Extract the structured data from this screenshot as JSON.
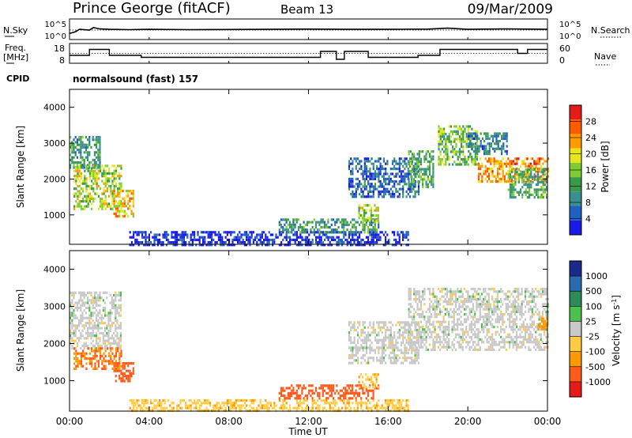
{
  "header": {
    "station": "Prince George (fitACF)",
    "beam": "Beam 13",
    "date": "09/Mar/2009"
  },
  "panels": {
    "nsky_label": "N.Sky",
    "nsearch_label": "N.Search",
    "freq_label_line1": "Freq.",
    "freq_label_line2": "[MHz]",
    "nave_label": "Nave",
    "cpid_label": "CPID",
    "cpid_value": "normalsound (fast) 157",
    "noise_ticks": [
      "10^5",
      "10^0"
    ],
    "freq_ticks": [
      "18",
      "8"
    ],
    "nave_ticks": [
      "60",
      "0"
    ]
  },
  "colors": {
    "power_scale": [
      "#1a1ae6",
      "#2060c0",
      "#3a8f8f",
      "#3a9a4a",
      "#7fcc33",
      "#e6e61a",
      "#ff9a00",
      "#ff5a00",
      "#e61a1a"
    ],
    "velocity_scale": [
      "#1a2a8a",
      "#2c6ab0",
      "#2e8a5a",
      "#4cc04c",
      "#c8c8c8",
      "#ffcc44",
      "#ff9900",
      "#ff5a1a",
      "#e61a1a"
    ]
  },
  "chart_data": [
    {
      "type": "line",
      "title": "Prince George (fitACF)",
      "subtitle": "Beam 13",
      "xlabel": "",
      "ylabel": "N.Sky",
      "note": "noise sky (solid) and noise search (dotted)",
      "x_range_hours": [
        0,
        24
      ],
      "ylim": [
        1,
        100000
      ],
      "y_scale": "log",
      "ticks_y": [
        "10^5",
        "10^0"
      ],
      "series": [
        {
          "name": "N.Sky",
          "x": [
            0,
            0.3,
            0.5,
            1.0,
            1.2,
            1.5,
            2,
            3,
            4,
            6,
            8,
            10,
            12,
            14,
            16,
            18,
            19,
            20,
            22,
            23,
            24
          ],
          "y": [
            30,
            80,
            300,
            200,
            800,
            400,
            300,
            250,
            300,
            250,
            280,
            300,
            350,
            300,
            300,
            350,
            600,
            300,
            400,
            350,
            300
          ]
        },
        {
          "name": "N.Search",
          "x": [
            0,
            6,
            12,
            18,
            24
          ],
          "y": [
            200,
            200,
            200,
            200,
            200
          ]
        }
      ]
    },
    {
      "type": "line",
      "ylabel": "Freq. [MHz]",
      "y2label": "Nave",
      "note": "frequency (solid) and nave (dotted)",
      "x_range_hours": [
        0,
        24
      ],
      "ylim": [
        8,
        18
      ],
      "y2lim": [
        0,
        60
      ],
      "ticks_y": [
        "18",
        "8"
      ],
      "ticks_y2": [
        "60",
        "0"
      ],
      "series": [
        {
          "name": "Freq. [MHz]",
          "x": [
            0,
            0.4,
            0.8,
            1.0,
            1.4,
            2.0,
            2.4,
            3.0,
            3.6,
            4.0,
            5.0,
            6.0,
            8.0,
            10.0,
            12.0,
            12.6,
            13.0,
            13.4,
            13.8,
            14.2,
            15.0,
            16.0,
            17.5,
            18.0,
            18.6,
            19.0,
            20.0,
            21.0,
            22.0,
            22.5,
            23.0,
            24.0
          ],
          "y": [
            12,
            12,
            12,
            15,
            15,
            12,
            12,
            12,
            11,
            11,
            11,
            11,
            11,
            11,
            11,
            14,
            14,
            10,
            14,
            14,
            11,
            11,
            12,
            12,
            15,
            15,
            15,
            15,
            15,
            13,
            15,
            15
          ]
        },
        {
          "name": "Nave",
          "x": [
            0,
            24
          ],
          "y": [
            30,
            30
          ]
        }
      ]
    },
    {
      "type": "heatmap",
      "xlabel": "",
      "ylabel": "Slant Range [km]",
      "colorbar_label": "Power [dB]",
      "colorbar_ticks": [
        4,
        8,
        12,
        16,
        20,
        24,
        28
      ],
      "x_range_hours": [
        0,
        24
      ],
      "ylim": [
        180,
        4500
      ],
      "y_ticks": [
        1000,
        2000,
        3000,
        4000
      ],
      "regions": [
        {
          "x": [
            0.0,
            1.5
          ],
          "y": [
            2300,
            3200
          ],
          "level": 12
        },
        {
          "x": [
            0.2,
            2.6
          ],
          "y": [
            1200,
            2400
          ],
          "level": 18
        },
        {
          "x": [
            2.2,
            3.2
          ],
          "y": [
            950,
            1700
          ],
          "level": 22
        },
        {
          "x": [
            3.0,
            17.0
          ],
          "y": [
            180,
            550
          ],
          "level": 4
        },
        {
          "x": [
            10.5,
            15.5
          ],
          "y": [
            500,
            900
          ],
          "level": 12
        },
        {
          "x": [
            14.5,
            15.5
          ],
          "y": [
            850,
            1300
          ],
          "level": 18
        },
        {
          "x": [
            14.0,
            17.5
          ],
          "y": [
            1500,
            2600
          ],
          "level": 8
        },
        {
          "x": [
            17.0,
            18.3
          ],
          "y": [
            1800,
            2800
          ],
          "level": 14
        },
        {
          "x": [
            18.5,
            20.5
          ],
          "y": [
            2400,
            3500
          ],
          "level": 16
        },
        {
          "x": [
            20.0,
            22.0
          ],
          "y": [
            2700,
            3300
          ],
          "level": 10
        },
        {
          "x": [
            20.5,
            24.0
          ],
          "y": [
            1900,
            2600
          ],
          "level": 24
        },
        {
          "x": [
            22.0,
            24.0
          ],
          "y": [
            1500,
            2300
          ],
          "level": 14
        }
      ]
    },
    {
      "type": "heatmap",
      "xlabel": "Time UT",
      "ylabel": "Slant Range [km]",
      "colorbar_label": "Velocity [m s^-1]",
      "colorbar_ticks": [
        1000,
        500,
        100,
        25,
        -25,
        -100,
        -500,
        -1000
      ],
      "x_ticks": [
        "00:00",
        "04:00",
        "08:00",
        "12:00",
        "16:00",
        "20:00",
        "00:00"
      ],
      "x_range_hours": [
        0,
        24
      ],
      "ylim": [
        180,
        4500
      ],
      "y_ticks": [
        1000,
        2000,
        3000,
        4000
      ],
      "regions": [
        {
          "x": [
            0.0,
            2.6
          ],
          "y": [
            1900,
            3400
          ],
          "level": 0
        },
        {
          "x": [
            0.2,
            2.6
          ],
          "y": [
            1300,
            1900
          ],
          "level": -150
        },
        {
          "x": [
            2.2,
            3.2
          ],
          "y": [
            1000,
            1500
          ],
          "level": -200
        },
        {
          "x": [
            3.0,
            17.0
          ],
          "y": [
            180,
            500
          ],
          "level": -60
        },
        {
          "x": [
            10.5,
            15.5
          ],
          "y": [
            550,
            900
          ],
          "level": -200
        },
        {
          "x": [
            14.5,
            15.5
          ],
          "y": [
            850,
            1200
          ],
          "level": -60
        },
        {
          "x": [
            14.0,
            17.5
          ],
          "y": [
            1500,
            2600
          ],
          "level": 0
        },
        {
          "x": [
            17.0,
            24.0
          ],
          "y": [
            1800,
            3500
          ],
          "level": 0
        },
        {
          "x": [
            23.5,
            24.0
          ],
          "y": [
            2400,
            2700
          ],
          "level": -120
        }
      ]
    }
  ]
}
